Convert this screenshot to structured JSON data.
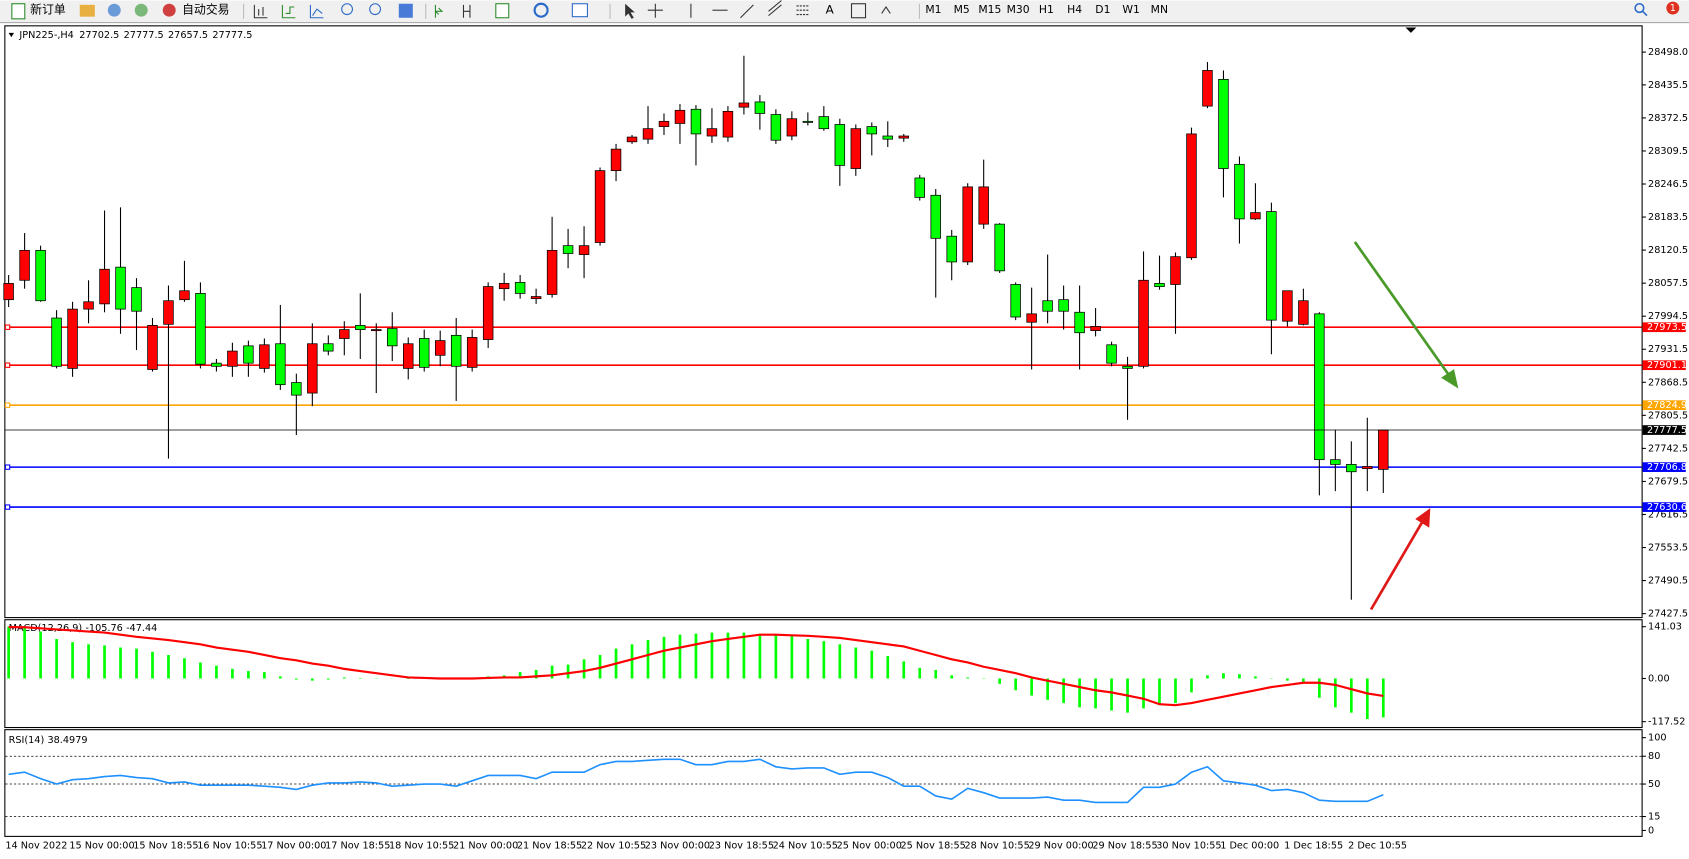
{
  "toolbar": {
    "new_order": "新订单",
    "auto_trading": "自动交易",
    "timeframes": [
      "M1",
      "M5",
      "M15",
      "M30",
      "H1",
      "H4",
      "D1",
      "W1",
      "MN"
    ],
    "notification_count": 1
  },
  "chart_data": [
    {
      "type": "candlestick",
      "title": "JPN225-,H4",
      "categories": [
        "14 Nov 2022",
        null,
        null,
        null,
        "15 Nov 00:00",
        null,
        null,
        null,
        "15 Nov 18:55",
        null,
        null,
        null,
        "16 Nov 10:55",
        null,
        null,
        null,
        "17 Nov 00:00",
        null,
        null,
        null,
        "17 Nov 18:55",
        null,
        null,
        null,
        "18 Nov 10:55",
        null,
        null,
        null,
        "21 Nov 00:00",
        null,
        null,
        null,
        "21 Nov 18:55",
        null,
        null,
        null,
        "22 Nov 10:55",
        null,
        null,
        null,
        "23 Nov 00:00",
        null,
        null,
        null,
        "23 Nov 18:55",
        null,
        null,
        null,
        "24 Nov 10:55",
        null,
        null,
        null,
        "25 Nov 00:00",
        null,
        null,
        null,
        "25 Nov 18:55",
        null,
        null,
        null,
        "28 Nov 10:55",
        null,
        null,
        null,
        "29 Nov 00:00",
        null,
        null,
        null,
        "29 Nov 18:55",
        null,
        null,
        null,
        "30 Nov 10:55",
        null,
        null,
        null,
        "1 Dec 00:00",
        null,
        null,
        null,
        "1 Dec 18:55",
        null,
        null,
        null,
        "2 Dec 10:55",
        null,
        null
      ],
      "open": [
        28026,
        28063,
        28120,
        27991,
        27895,
        28008,
        28018,
        28088,
        28049,
        27893,
        27979,
        28026,
        28038,
        27905,
        27899,
        27938,
        27895,
        27942,
        27868,
        27848,
        27942,
        27952,
        27977,
        27967,
        27971,
        27895,
        27952,
        27920,
        27958,
        27897,
        27950,
        28047,
        28059,
        28028,
        28036,
        28129,
        28112,
        28135,
        28272,
        28327,
        28332,
        28356,
        28362,
        28389,
        28338,
        28336,
        28393,
        28403,
        28379,
        28338,
        28366,
        28375,
        28360,
        28276,
        28356,
        28338,
        28334,
        28258,
        28225,
        28147,
        28098,
        28170,
        28170,
        28055,
        27983,
        28024,
        28026,
        28002,
        27967,
        27940,
        27899,
        27899,
        28057,
        28055,
        28106,
        28395,
        28446,
        28284,
        28180,
        28194,
        27985,
        27979,
        27999,
        27721,
        27712,
        27704,
        27702.5
      ],
      "high": [
        28073,
        28153,
        28129,
        28006,
        28022,
        28063,
        28196,
        28202,
        28067,
        27991,
        28053,
        28100,
        28059,
        27913,
        27944,
        27948,
        27952,
        28016,
        27885,
        27981,
        27958,
        27985,
        28038,
        27981,
        28002,
        27954,
        27969,
        27967,
        27991,
        27969,
        28059,
        28077,
        28073,
        28047,
        28184,
        28161,
        28166,
        28278,
        28323,
        28340,
        28395,
        28381,
        28399,
        28397,
        28391,
        28395,
        28491,
        28416,
        28389,
        28385,
        28383,
        28395,
        28371,
        28360,
        28364,
        28366,
        28342,
        28264,
        28237,
        28159,
        28248,
        28293,
        28172,
        28059,
        28049,
        28112,
        28053,
        28053,
        28010,
        27946,
        27917,
        28118,
        28110,
        28116,
        28354,
        28479,
        28463,
        28299,
        28248,
        28211,
        28043,
        28047,
        28002,
        27778,
        27756,
        27801,
        27777.5
      ],
      "low": [
        28012,
        28047,
        28022,
        27895,
        27879,
        27981,
        28002,
        27961,
        27930,
        27889,
        27723,
        28022,
        27895,
        27889,
        27879,
        27879,
        27887,
        27854,
        27768,
        27823,
        27920,
        27920,
        27913,
        27848,
        27909,
        27874,
        27889,
        27899,
        27833,
        27889,
        27934,
        28024,
        28028,
        28018,
        28030,
        28086,
        28067,
        28129,
        28252,
        28323,
        28323,
        28340,
        28323,
        28282,
        28325,
        28327,
        28379,
        28350,
        28323,
        28330,
        28358,
        28348,
        28243,
        28262,
        28301,
        28317,
        28327,
        28215,
        28030,
        28063,
        28092,
        28161,
        28077,
        27987,
        27893,
        27981,
        27969,
        27893,
        27956,
        27899,
        27797,
        27895,
        28045,
        27961,
        28102,
        28391,
        28221,
        28133,
        28178,
        27922,
        27975,
        27977,
        27653,
        27661,
        27454,
        27661,
        27657.5
      ],
      "close": [
        28057,
        28120,
        28024,
        27899,
        28008,
        28022,
        28084,
        28008,
        28004,
        27977,
        28024,
        28043,
        27903,
        27899,
        27928,
        27905,
        27940,
        27864,
        27844,
        27942,
        27928,
        27969,
        27969,
        27969,
        27938,
        27942,
        27897,
        27948,
        27899,
        27954,
        28051,
        28057,
        28038,
        28032,
        28120,
        28114,
        28129,
        28272,
        28313,
        28336,
        28352,
        28366,
        28387,
        28342,
        28352,
        28385,
        28401,
        28381,
        28330,
        28371,
        28364,
        28352,
        28282,
        28352,
        28342,
        28332,
        28338,
        28221,
        28143,
        28098,
        28241,
        28241,
        28081,
        27993,
        27999,
        28004,
        28004,
        27963,
        27975,
        27905,
        27895,
        28063,
        28051,
        28108,
        28342,
        28463,
        28276,
        28180,
        28192,
        27987,
        28043,
        28024,
        27721,
        27712,
        27698,
        27708,
        27777.5
      ],
      "up_color": "#ff0000",
      "down_color": "#00ff00",
      "ylim": [
        27421,
        28547
      ],
      "yticks": [
        {
          "value": 28498,
          "label": "28498.0"
        },
        28435.5,
        28372.5,
        28309.5,
        28246.5,
        28183.5,
        28120.5,
        28057.5,
        27994.5,
        27931.5,
        27868.5,
        27805.5,
        27742.5,
        27679.5,
        27616.5,
        27553.5,
        27490.5,
        27427.5
      ],
      "levels": [
        {
          "value": 27973.5,
          "color": "#ff0000"
        },
        {
          "value": 27901.1,
          "color": "#ff0000"
        },
        {
          "value": 27824.9,
          "color": "#ffa500"
        },
        {
          "value": 27706.8,
          "color": "#0000ff"
        },
        {
          "value": 27630.6,
          "color": "#0000ff"
        }
      ]
    },
    {
      "type": "macd",
      "title": "MACD(12,26,9)",
      "histogram": {
        "color": "#00ff00",
        "values": [
          141,
          136.6,
          127.9,
          107.6,
          98.8,
          93,
          90.1,
          84.3,
          81.4,
          72.7,
          64,
          55.2,
          43.6,
          34.9,
          26.2,
          20.3,
          17.4,
          5.8,
          -2.9,
          -5.8,
          -2.9,
          2.9,
          1.5,
          0.8,
          -0.5,
          -1.2,
          -0.8,
          0.4,
          -0.6,
          0.9,
          5.8,
          8.7,
          17.4,
          23.3,
          34.9,
          37.8,
          52.3,
          64,
          81.4,
          93,
          104.7,
          113.4,
          119.2,
          122.1,
          125,
          125,
          125,
          122.1,
          119.2,
          116.3,
          107.6,
          101.7,
          93,
          84.3,
          75.6,
          61,
          46.5,
          29.1,
          23.3,
          8.7,
          2.9,
          -1,
          -14.5,
          -32,
          -46.5,
          -58.1,
          -66.9,
          -78.5,
          -81.4,
          -87.2,
          -93,
          -81.4,
          -72.7,
          -66.9,
          -37.8,
          8.7,
          14.5,
          11.6,
          5.8,
          -1,
          -5.8,
          -11.6,
          -52.3,
          -78.5,
          -93,
          -110.5,
          -105.76
        ]
      },
      "signal": {
        "color": "#ff0000",
        "values": [
          140,
          139.5,
          136.6,
          133.7,
          130.8,
          127.9,
          125,
          119.2,
          113.4,
          109,
          104.7,
          98.8,
          93,
          84.3,
          78.5,
          72.7,
          64,
          55.2,
          49.4,
          40.7,
          34.9,
          26.2,
          20.3,
          14.5,
          8.7,
          2.9,
          1.5,
          0,
          0,
          0,
          1.5,
          2.9,
          2.9,
          5.8,
          8.7,
          14.5,
          20.3,
          29.1,
          40.7,
          52.3,
          64,
          75.6,
          84.3,
          93,
          101.7,
          107.6,
          113.4,
          119.2,
          119.2,
          117.7,
          116.3,
          113.4,
          110.5,
          104.7,
          98.8,
          93,
          87.2,
          75.6,
          64,
          52.3,
          43.6,
          32,
          23.3,
          14.5,
          2.9,
          -5.8,
          -14.5,
          -23.3,
          -32,
          -37.8,
          -46.5,
          -55.2,
          -69.8,
          -72.7,
          -66.9,
          -58.1,
          -49.4,
          -40.7,
          -32,
          -23.3,
          -17.4,
          -11.6,
          -11.6,
          -17.4,
          -29.1,
          -40.7,
          -47.44
        ]
      },
      "ylim": [
        -132,
        158.5
      ],
      "yticks": [
        141.03,
        {
          "value": 0,
          "label": "0.00"
        },
        -117.52
      ]
    },
    {
      "type": "line",
      "title": "RSI(14)",
      "color": "#1e90ff",
      "values": [
        60.5,
        62.8,
        55.8,
        50,
        54.7,
        55.8,
        58.1,
        59.3,
        57,
        55.8,
        51.2,
        52.3,
        48.8,
        48.8,
        48.8,
        48.8,
        47.7,
        46.5,
        44.2,
        48.8,
        51.2,
        51.2,
        52.3,
        51.2,
        47.7,
        48.8,
        50,
        50,
        47.7,
        53.5,
        59.3,
        59.3,
        59.3,
        55.8,
        62.8,
        62.8,
        62.8,
        70.9,
        74.4,
        74.4,
        75.6,
        76.7,
        76.7,
        70.9,
        70.9,
        74.4,
        74.4,
        76.7,
        68.6,
        66.3,
        67.4,
        67.4,
        60.5,
        62.8,
        62.8,
        57,
        47.7,
        47.7,
        37.2,
        33.7,
        45.4,
        40.7,
        34.9,
        34.9,
        34.9,
        36,
        32.6,
        32.6,
        30.2,
        30.2,
        30.2,
        46.5,
        46.5,
        50,
        62.8,
        68.6,
        53.5,
        51.2,
        48.8,
        43,
        44.2,
        40.7,
        32.6,
        31.4,
        31.4,
        31.4,
        38.4979
      ],
      "ylim": [
        -5.8,
        108
      ],
      "yticks": [
        100,
        80,
        50,
        15,
        0
      ],
      "levels": [
        80,
        50,
        15
      ]
    }
  ]
}
